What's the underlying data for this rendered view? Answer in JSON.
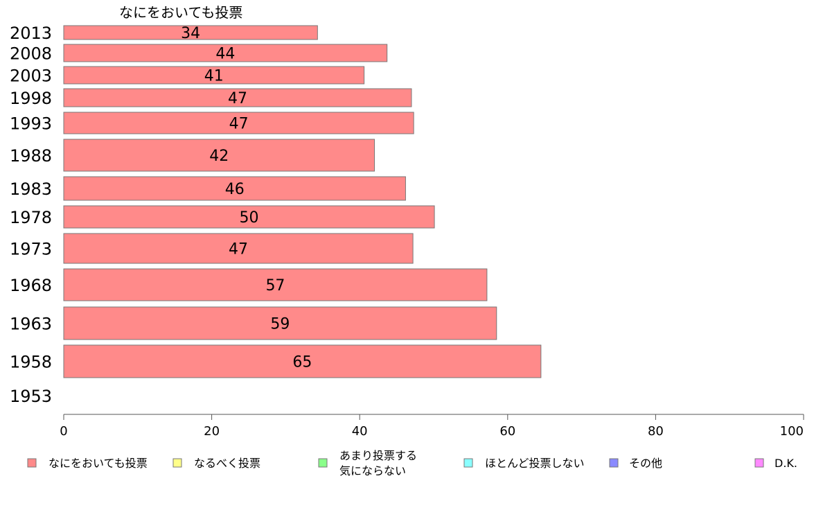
{
  "chart_data": {
    "type": "bar",
    "orientation": "horizontal",
    "title": "なにをおいても投票",
    "categories": [
      "2013",
      "2008",
      "2003",
      "1998",
      "1993",
      "1988",
      "1983",
      "1978",
      "1973",
      "1968",
      "1963",
      "1958",
      "1953"
    ],
    "series": [
      {
        "name": "なにをおいても投票",
        "values": [
          34.3,
          43.7,
          40.6,
          47.0,
          47.3,
          42.0,
          46.2,
          50.1,
          47.2,
          57.2,
          58.5,
          64.5,
          null
        ],
        "labels": [
          "34",
          "44",
          "41",
          "47",
          "47",
          "42",
          "46",
          "50",
          "47",
          "57",
          "59",
          "65",
          ""
        ]
      }
    ],
    "xlim": [
      0,
      100
    ],
    "xticks": [
      "0",
      "20",
      "40",
      "60",
      "80",
      "100"
    ],
    "grid": false,
    "legend_position": "bottom",
    "legend": [
      {
        "label": "なにをおいても投票",
        "color": "#ff8a8a"
      },
      {
        "label": "なるべく投票",
        "color": "#ffff8a"
      },
      {
        "label": "あまり投票する",
        "label2": "気にならない",
        "color": "#8aff8a"
      },
      {
        "label": "ほとんど投票しない",
        "color": "#8affff"
      },
      {
        "label": "その他",
        "color": "#8a8aff"
      },
      {
        "label": "D.K.",
        "color": "#ff8aff"
      }
    ]
  }
}
